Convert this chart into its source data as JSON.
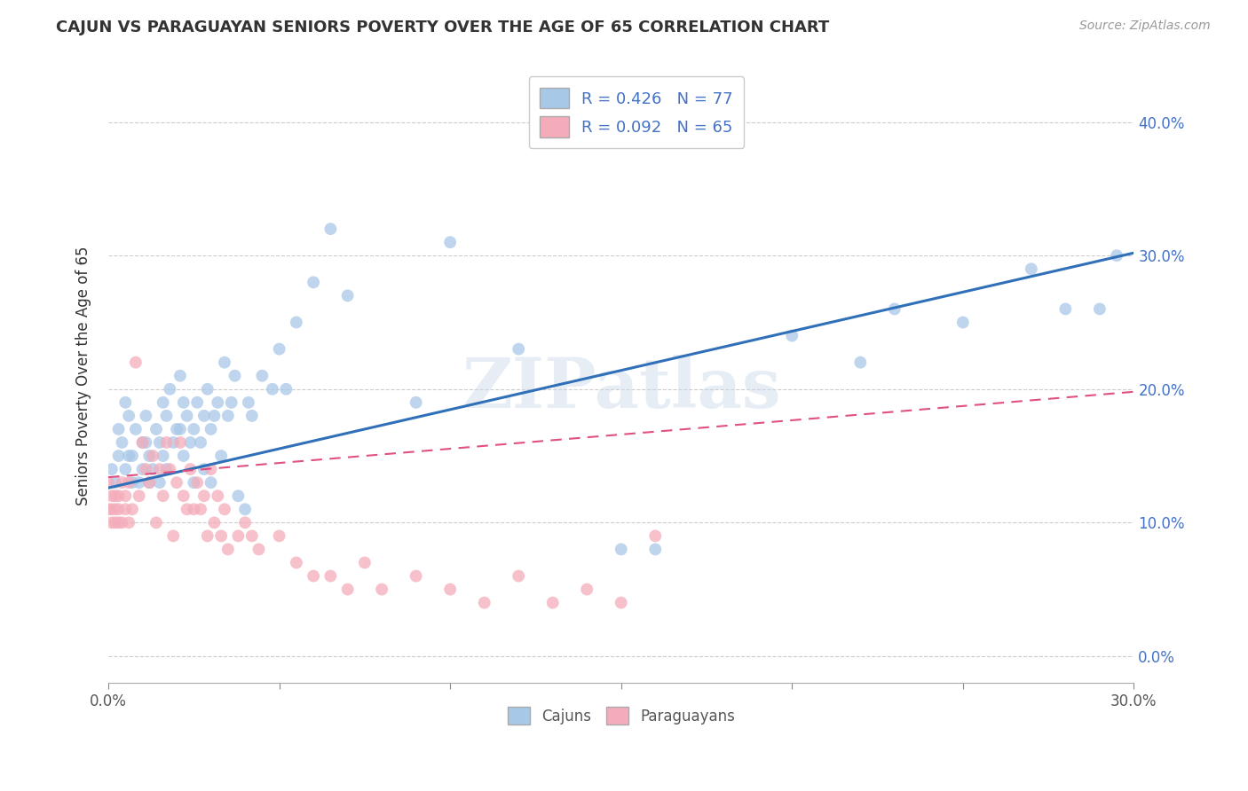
{
  "title": "CAJUN VS PARAGUAYAN SENIORS POVERTY OVER THE AGE OF 65 CORRELATION CHART",
  "source": "Source: ZipAtlas.com",
  "ylabel": "Seniors Poverty Over the Age of 65",
  "cajun_R": 0.426,
  "cajun_N": 77,
  "paraguayan_R": 0.092,
  "paraguayan_N": 65,
  "xlim": [
    0.0,
    0.3
  ],
  "ylim": [
    -0.02,
    0.44
  ],
  "cajun_color": "#A8C8E8",
  "cajun_line_color": "#3070B8",
  "paraguayan_color": "#F4ACBA",
  "paraguayan_line_color": "#E05080",
  "paraguayan_dash_color": "#E8A0B0",
  "watermark": "ZIPatlas",
  "cajun_x": [
    0.001,
    0.002,
    0.003,
    0.003,
    0.004,
    0.005,
    0.005,
    0.006,
    0.006,
    0.007,
    0.007,
    0.008,
    0.009,
    0.01,
    0.01,
    0.011,
    0.011,
    0.012,
    0.012,
    0.013,
    0.014,
    0.015,
    0.015,
    0.016,
    0.016,
    0.017,
    0.017,
    0.018,
    0.019,
    0.02,
    0.021,
    0.021,
    0.022,
    0.022,
    0.023,
    0.024,
    0.025,
    0.025,
    0.026,
    0.027,
    0.028,
    0.028,
    0.029,
    0.03,
    0.03,
    0.031,
    0.032,
    0.033,
    0.034,
    0.035,
    0.036,
    0.037,
    0.038,
    0.04,
    0.041,
    0.042,
    0.045,
    0.048,
    0.05,
    0.052,
    0.055,
    0.06,
    0.065,
    0.07,
    0.09,
    0.1,
    0.12,
    0.15,
    0.16,
    0.2,
    0.22,
    0.23,
    0.25,
    0.27,
    0.28,
    0.29,
    0.295
  ],
  "cajun_y": [
    0.14,
    0.13,
    0.15,
    0.17,
    0.16,
    0.14,
    0.19,
    0.15,
    0.18,
    0.13,
    0.15,
    0.17,
    0.13,
    0.14,
    0.16,
    0.18,
    0.16,
    0.15,
    0.13,
    0.14,
    0.17,
    0.16,
    0.13,
    0.15,
    0.19,
    0.18,
    0.14,
    0.2,
    0.16,
    0.17,
    0.21,
    0.17,
    0.19,
    0.15,
    0.18,
    0.16,
    0.17,
    0.13,
    0.19,
    0.16,
    0.18,
    0.14,
    0.2,
    0.17,
    0.13,
    0.18,
    0.19,
    0.15,
    0.22,
    0.18,
    0.19,
    0.21,
    0.12,
    0.11,
    0.19,
    0.18,
    0.21,
    0.2,
    0.23,
    0.2,
    0.25,
    0.28,
    0.32,
    0.27,
    0.19,
    0.31,
    0.23,
    0.08,
    0.08,
    0.24,
    0.22,
    0.26,
    0.25,
    0.29,
    0.26,
    0.26,
    0.3
  ],
  "paraguayan_x": [
    0.0,
    0.0,
    0.001,
    0.001,
    0.001,
    0.002,
    0.002,
    0.002,
    0.003,
    0.003,
    0.003,
    0.004,
    0.004,
    0.005,
    0.005,
    0.006,
    0.006,
    0.007,
    0.008,
    0.009,
    0.01,
    0.011,
    0.012,
    0.013,
    0.014,
    0.015,
    0.016,
    0.017,
    0.018,
    0.019,
    0.02,
    0.021,
    0.022,
    0.023,
    0.024,
    0.025,
    0.026,
    0.027,
    0.028,
    0.029,
    0.03,
    0.031,
    0.032,
    0.033,
    0.034,
    0.035,
    0.038,
    0.04,
    0.042,
    0.044,
    0.05,
    0.055,
    0.06,
    0.065,
    0.07,
    0.075,
    0.08,
    0.09,
    0.1,
    0.11,
    0.12,
    0.13,
    0.14,
    0.15,
    0.16
  ],
  "paraguayan_y": [
    0.13,
    0.11,
    0.12,
    0.11,
    0.1,
    0.12,
    0.11,
    0.1,
    0.12,
    0.1,
    0.11,
    0.13,
    0.1,
    0.12,
    0.11,
    0.1,
    0.13,
    0.11,
    0.22,
    0.12,
    0.16,
    0.14,
    0.13,
    0.15,
    0.1,
    0.14,
    0.12,
    0.16,
    0.14,
    0.09,
    0.13,
    0.16,
    0.12,
    0.11,
    0.14,
    0.11,
    0.13,
    0.11,
    0.12,
    0.09,
    0.14,
    0.1,
    0.12,
    0.09,
    0.11,
    0.08,
    0.09,
    0.1,
    0.09,
    0.08,
    0.09,
    0.07,
    0.06,
    0.06,
    0.05,
    0.07,
    0.05,
    0.06,
    0.05,
    0.04,
    0.06,
    0.04,
    0.05,
    0.04,
    0.09
  ],
  "cajun_trend_x0": 0.0,
  "cajun_trend_y0": 0.126,
  "cajun_trend_x1": 0.3,
  "cajun_trend_y1": 0.302,
  "paraguayan_trend_x0": 0.0,
  "paraguayan_trend_y0": 0.134,
  "paraguayan_trend_x1": 0.3,
  "paraguayan_trend_y1": 0.198,
  "yticks": [
    0.0,
    0.1,
    0.2,
    0.3,
    0.4
  ],
  "ytick_labels": [
    "0.0%",
    "10.0%",
    "20.0%",
    "30.0%",
    "40.0%"
  ],
  "xtick_left_label": "0.0%",
  "xtick_right_label": "30.0%",
  "xtick_left": 0.0,
  "xtick_right": 0.3,
  "grid_color": "#CCCCCC",
  "tick_color": "#888888"
}
